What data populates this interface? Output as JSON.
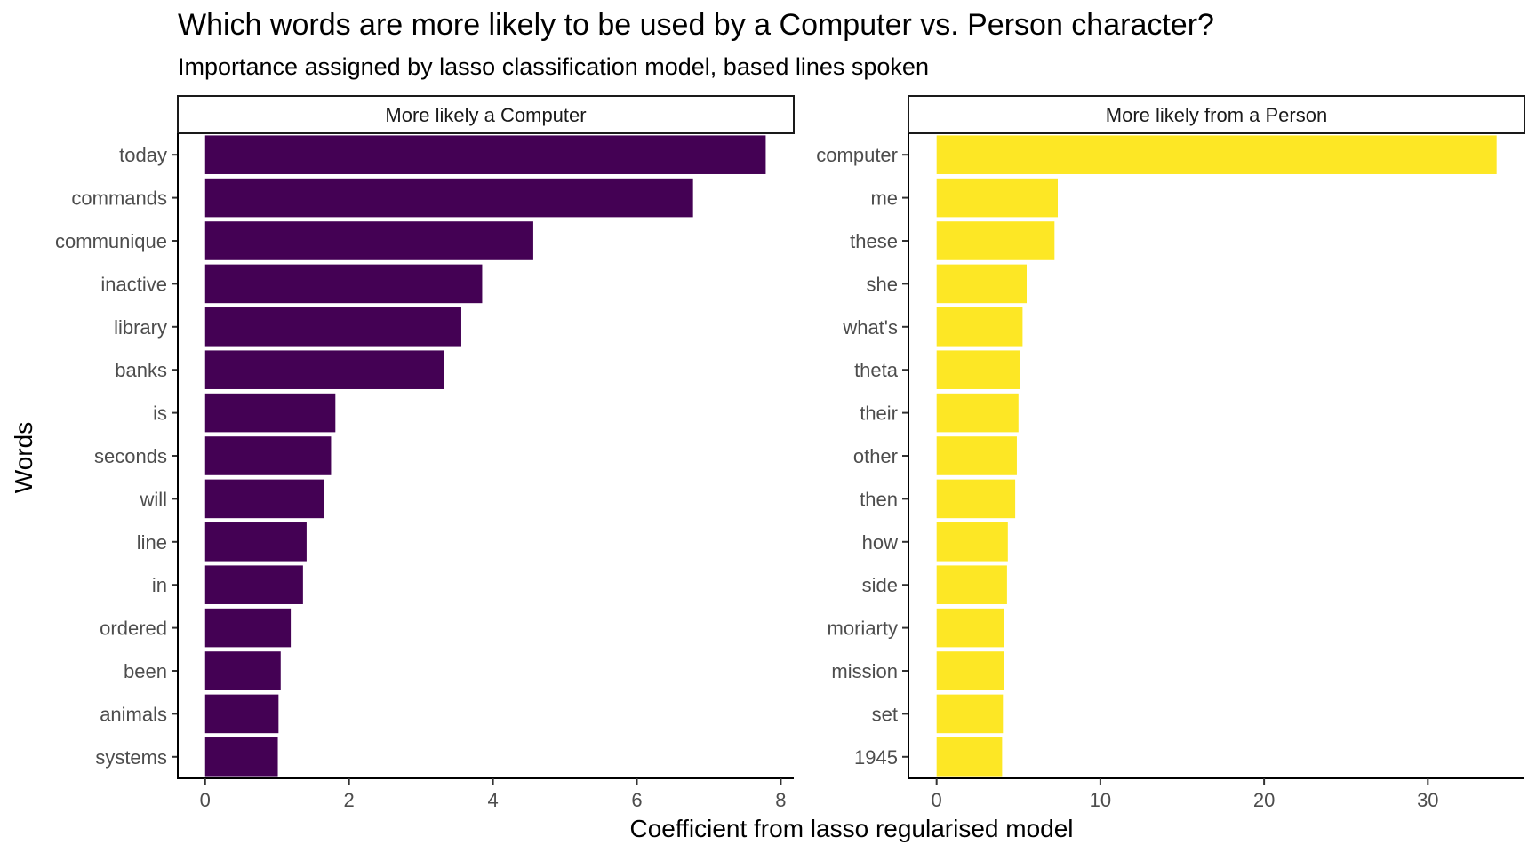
{
  "chart_data": {
    "type": "bar",
    "orientation": "horizontal",
    "title": "Which words are more likely to be used by a Computer vs. Person character?",
    "subtitle": "Importance assigned by lasso classification model, based lines spoken",
    "xlabel": "Coefficient from lasso regularised model",
    "ylabel": "Words",
    "grid": false,
    "panels": [
      {
        "strip_label": "More likely a Computer",
        "color": "#440154",
        "xlim": [
          -0.38,
          8.18
        ],
        "x_ticks": [
          0,
          2,
          4,
          6,
          8
        ],
        "categories": [
          "today",
          "commands",
          "communique",
          "inactive",
          "library",
          "banks",
          "is",
          "seconds",
          "will",
          "line",
          "in",
          "ordered",
          "been",
          "animals",
          "systems"
        ],
        "values": [
          7.79,
          6.78,
          4.56,
          3.85,
          3.56,
          3.32,
          1.81,
          1.75,
          1.65,
          1.41,
          1.36,
          1.19,
          1.05,
          1.02,
          1.01
        ]
      },
      {
        "strip_label": "More likely from a Person",
        "color": "#FDE725",
        "xlim": [
          -1.72,
          35.9
        ],
        "x_ticks": [
          0,
          10,
          20,
          30
        ],
        "categories": [
          "computer",
          "me",
          "these",
          "she",
          "what's",
          "theta",
          "their",
          "other",
          "then",
          "how",
          "side",
          "moriarty",
          "mission",
          "set",
          "1945"
        ],
        "values": [
          34.2,
          7.4,
          7.2,
          5.5,
          5.25,
          5.1,
          5.0,
          4.9,
          4.8,
          4.35,
          4.3,
          4.1,
          4.1,
          4.05,
          4.0
        ]
      }
    ]
  }
}
